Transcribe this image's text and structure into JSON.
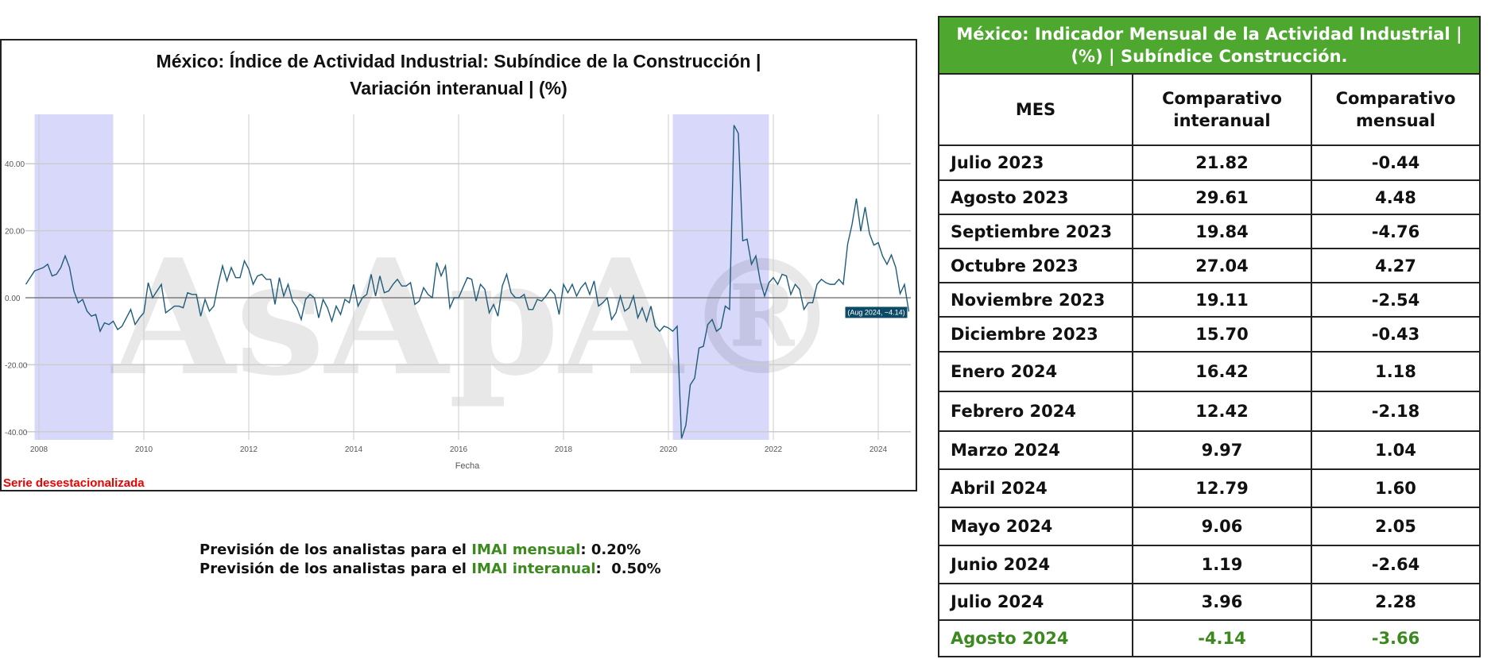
{
  "chart_data": {
    "type": "line",
    "title": "México: Índice de Actividad Industrial: Subíndice de la Construcción | Variación interanual | (%)",
    "xlabel": "Fecha",
    "ylabel": "",
    "x_ticks": [
      "2008",
      "2010",
      "2012",
      "2014",
      "2016",
      "2018",
      "2020",
      "2022",
      "2024"
    ],
    "y_ticks": [
      "40.00",
      "20.00",
      "0.00",
      "-20.00",
      "-40.00"
    ],
    "ylim": [
      -45,
      55
    ],
    "grid": true,
    "line_color": "#1f5c7a",
    "shade_color": "#d8d8fb",
    "shaded_periods": [
      [
        "2007-12",
        "2009-06"
      ],
      [
        "2020-02",
        "2021-12"
      ]
    ],
    "tooltip": "(Aug 2024, −4.14)",
    "watermark": "AsApA®",
    "monthly_values_by_year": {
      "2007": [
        4,
        6,
        8
      ],
      "2008": [
        8.5,
        9,
        10,
        6.5,
        7,
        9,
        12.5,
        9,
        2,
        -1.5,
        -0.5,
        -4
      ],
      "2009": [
        -5.5,
        -5,
        -10,
        -7.5,
        -8,
        -7,
        -9.5,
        -8.5,
        -6,
        -3.5,
        -8,
        -6
      ],
      "2010": [
        -4.5,
        4.5,
        0,
        2,
        4,
        -4.5,
        -3.5,
        -2.5,
        -2.5,
        -3,
        1.5,
        1
      ],
      "2011": [
        1,
        -5.5,
        -0.5,
        -4,
        -2.5,
        4,
        9.5,
        5,
        9,
        6,
        6,
        11
      ],
      "2012": [
        8.5,
        4,
        6.5,
        7,
        5.5,
        5.5,
        -2,
        6,
        0.5,
        4,
        -1,
        -3
      ],
      "2013": [
        -6.5,
        -0.5,
        1,
        0,
        -6,
        -0.5,
        -3,
        -7,
        -2.5,
        -5,
        -0.5,
        -1.5
      ],
      "2014": [
        4,
        -2.5,
        0,
        1,
        7,
        0.5,
        6.5,
        1.5,
        2,
        4,
        5.5,
        3.5
      ],
      "2015": [
        3.5,
        4.5,
        -2,
        -1,
        3,
        1,
        0,
        10.5,
        6.5,
        9.5,
        -3,
        0
      ],
      "2016": [
        0,
        3,
        6,
        5.5,
        -1,
        4,
        2.5,
        -4.5,
        -2,
        -5.5,
        3.5,
        7
      ],
      "2017": [
        1.5,
        0,
        0,
        1,
        -3.5,
        -3.5,
        -0.5,
        -1,
        0.5,
        2.5,
        1,
        -5
      ],
      "2018": [
        4,
        1.5,
        4,
        0.5,
        3,
        4.5,
        1,
        5,
        -2.5,
        -1.5,
        0,
        -6.5
      ],
      "2019": [
        -4.5,
        0.5,
        -4,
        -3,
        0.5,
        -6,
        -3,
        -7,
        -2.5,
        -8.5,
        -10,
        -8.5
      ],
      "2020": [
        -9,
        -10,
        -8.5,
        -42,
        -38,
        -26,
        -24,
        -15,
        -14.5,
        -8,
        -6.5,
        -10
      ],
      "2021": [
        -9,
        -2.5,
        -3.5,
        51.5,
        49,
        17,
        17.5,
        10,
        12.5,
        5,
        0.5,
        4.5
      ],
      "2022": [
        6,
        4,
        7,
        6.5,
        1,
        4,
        2.5,
        -3.5,
        -1.5,
        -1.5,
        4,
        5.5
      ],
      "2023": [
        4.5,
        4,
        4,
        5.5,
        4,
        16,
        21.82,
        29.61,
        19.84,
        27.04,
        19.11,
        15.7
      ],
      "2024": [
        16.42,
        12.42,
        9.97,
        12.79,
        9.06,
        1.19,
        3.96,
        -4.14
      ]
    }
  },
  "note": "Serie desestacionalizada",
  "forecast": {
    "line1_prefix": "Previsión de los analistas para el ",
    "line1_hl": "IMAI mensual",
    "line1_suffix": ": 0.20%",
    "line2_prefix": "Previsión de los analistas para el ",
    "line2_hl": "IMAI interanual",
    "line2_suffix": ":  0.50%"
  },
  "table": {
    "title": "México: Indicador Mensual  de la Actividad Industrial | (%) | Subíndice Construcción.",
    "header_color": "#4ea72e",
    "highlight_color": "#3c8a1f",
    "columns": [
      "MES",
      "Comparativo interanual",
      "Comparativo mensual"
    ],
    "rows": [
      [
        "Julio 2023",
        "21.82",
        "-0.44"
      ],
      [
        "Agosto 2023",
        "29.61",
        "4.48"
      ],
      [
        "Septiembre 2023",
        "19.84",
        "-4.76"
      ],
      [
        "Octubre 2023",
        "27.04",
        "4.27"
      ],
      [
        "Noviembre 2023",
        "19.11",
        "-2.54"
      ],
      [
        "Diciembre 2023",
        "15.70",
        "-0.43"
      ],
      [
        "Enero 2024",
        "16.42",
        "1.18"
      ],
      [
        "Febrero 2024",
        "12.42",
        "-2.18"
      ],
      [
        "Marzo 2024",
        "9.97",
        "1.04"
      ],
      [
        "Abril 2024",
        "12.79",
        "1.60"
      ],
      [
        "Mayo 2024",
        "9.06",
        "2.05"
      ],
      [
        "Junio 2024",
        "1.19",
        "-2.64"
      ],
      [
        "Julio 2024",
        "3.96",
        "2.28"
      ],
      [
        "Agosto 2024",
        "-4.14",
        "-3.66"
      ]
    ]
  }
}
